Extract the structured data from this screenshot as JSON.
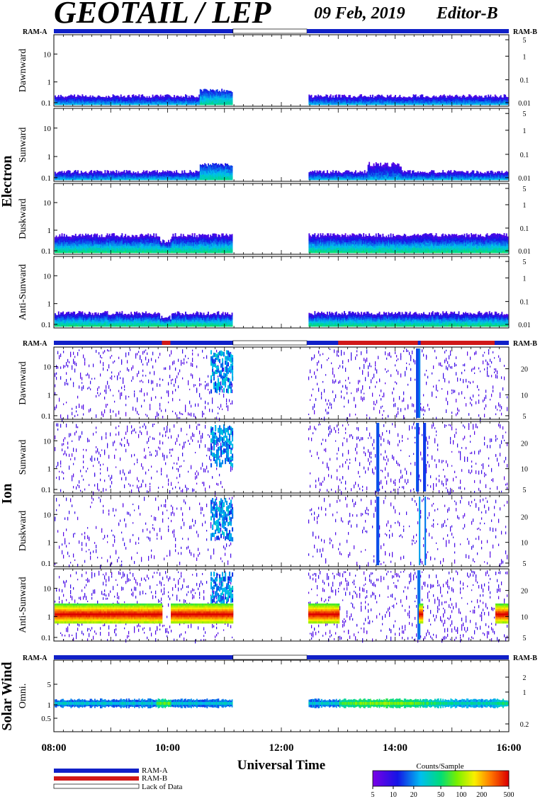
{
  "header": {
    "title": "GEOTAIL / LEP",
    "date": "09 Feb, 2019",
    "editor": "Editor-B"
  },
  "ram_labels": {
    "a": "RAM-A",
    "b": "RAM-B"
  },
  "groups": {
    "electron": "Electron",
    "ion": "Ion",
    "solar_wind": "Solar Wind"
  },
  "panel_labels": {
    "dawnward": "Dawnward",
    "sunward": "Sunward",
    "duskward": "Duskward",
    "anti_sunward": "Anti-Sunward",
    "omni": "Omni."
  },
  "xaxis": {
    "label": "Universal Time",
    "ticks": [
      "08:00",
      "10:00",
      "12:00",
      "14:00",
      "16:00"
    ]
  },
  "legend": {
    "ram_a": "RAM-A",
    "ram_b": "RAM-B",
    "lack": "Lack of Data",
    "colorbar_title": "Counts/Sample",
    "colorbar_ticks": [
      "5",
      "10",
      "20",
      "50",
      "100",
      "200",
      "500"
    ]
  },
  "colors": {
    "ram_a": "#1020c8",
    "ram_b": "#d01818",
    "lack": "#ffffff"
  },
  "chart_data": {
    "type": "heatmap",
    "time_range_hours": [
      8,
      16
    ],
    "gap_hours": [
      11.15,
      12.45
    ],
    "electron": {
      "left_ticks": [
        "10",
        "1",
        "0.1"
      ],
      "right_ticks": [
        "5",
        "1",
        "0.1",
        "0.01"
      ]
    },
    "ion": {
      "left_ticks": [
        "10",
        "1",
        "0.1"
      ],
      "right_ticks": [
        "20",
        "10",
        "5"
      ]
    },
    "solar_wind": {
      "left_ticks": [
        "5",
        "1",
        "0.5"
      ],
      "right_ticks": [
        "2",
        "1",
        "0.2"
      ]
    },
    "colorbar_range": [
      5,
      500
    ]
  }
}
